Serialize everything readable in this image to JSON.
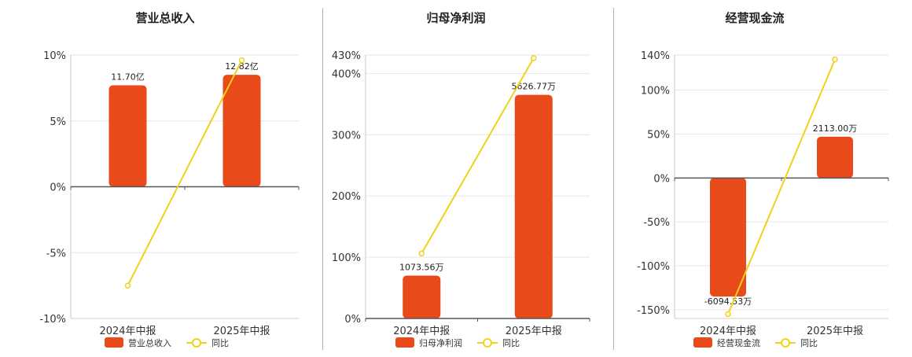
{
  "chart_data": [
    {
      "type": "bar",
      "title": "营业总收入",
      "categories": [
        "2024年中报",
        "2025年中报"
      ],
      "bar_series": {
        "name": "营业总收入",
        "color": "#e84a1a",
        "values_pct_axis": [
          7.7,
          8.5
        ],
        "labels": [
          "11.70亿",
          "12.82亿"
        ]
      },
      "line_series": {
        "name": "同比",
        "color": "#f0d21a",
        "values": [
          -7.5,
          9.6
        ]
      },
      "yticks": [
        "10%",
        "5%",
        "0%",
        "-5%",
        "-10%"
      ],
      "ytick_values": [
        10,
        5,
        0,
        -5,
        -10
      ],
      "ylim": [
        -10,
        10
      ],
      "grid": true,
      "legend_position": "bottom"
    },
    {
      "type": "bar",
      "title": "归母净利润",
      "categories": [
        "2024年中报",
        "2025年中报"
      ],
      "bar_series": {
        "name": "归母净利润",
        "color": "#e84a1a",
        "values_pct_axis": [
          70,
          365
        ],
        "labels": [
          "1073.56万",
          "5626.77万"
        ]
      },
      "line_series": {
        "name": "同比",
        "color": "#f0d21a",
        "values": [
          106,
          425
        ]
      },
      "yticks": [
        "430%",
        "400%",
        "300%",
        "200%",
        "100%",
        "0%"
      ],
      "ytick_values": [
        430,
        400,
        300,
        200,
        100,
        0
      ],
      "ylim": [
        0,
        430
      ],
      "grid": true,
      "legend_position": "bottom"
    },
    {
      "type": "bar",
      "title": "经营现金流",
      "categories": [
        "2024年中报",
        "2025年中报"
      ],
      "bar_series": {
        "name": "经营现金流",
        "color": "#e84a1a",
        "values_pct_axis": [
          -135,
          47
        ],
        "labels": [
          "-6094.53万",
          "2113.00万"
        ]
      },
      "line_series": {
        "name": "同比",
        "color": "#f0d21a",
        "values": [
          -155,
          135
        ]
      },
      "yticks": [
        "140%",
        "100%",
        "50%",
        "0%",
        "-50%",
        "-100%",
        "-150%"
      ],
      "ytick_values": [
        140,
        100,
        50,
        0,
        -50,
        -100,
        -150
      ],
      "ylim": [
        -160,
        140
      ],
      "grid": true,
      "legend_position": "bottom"
    }
  ]
}
